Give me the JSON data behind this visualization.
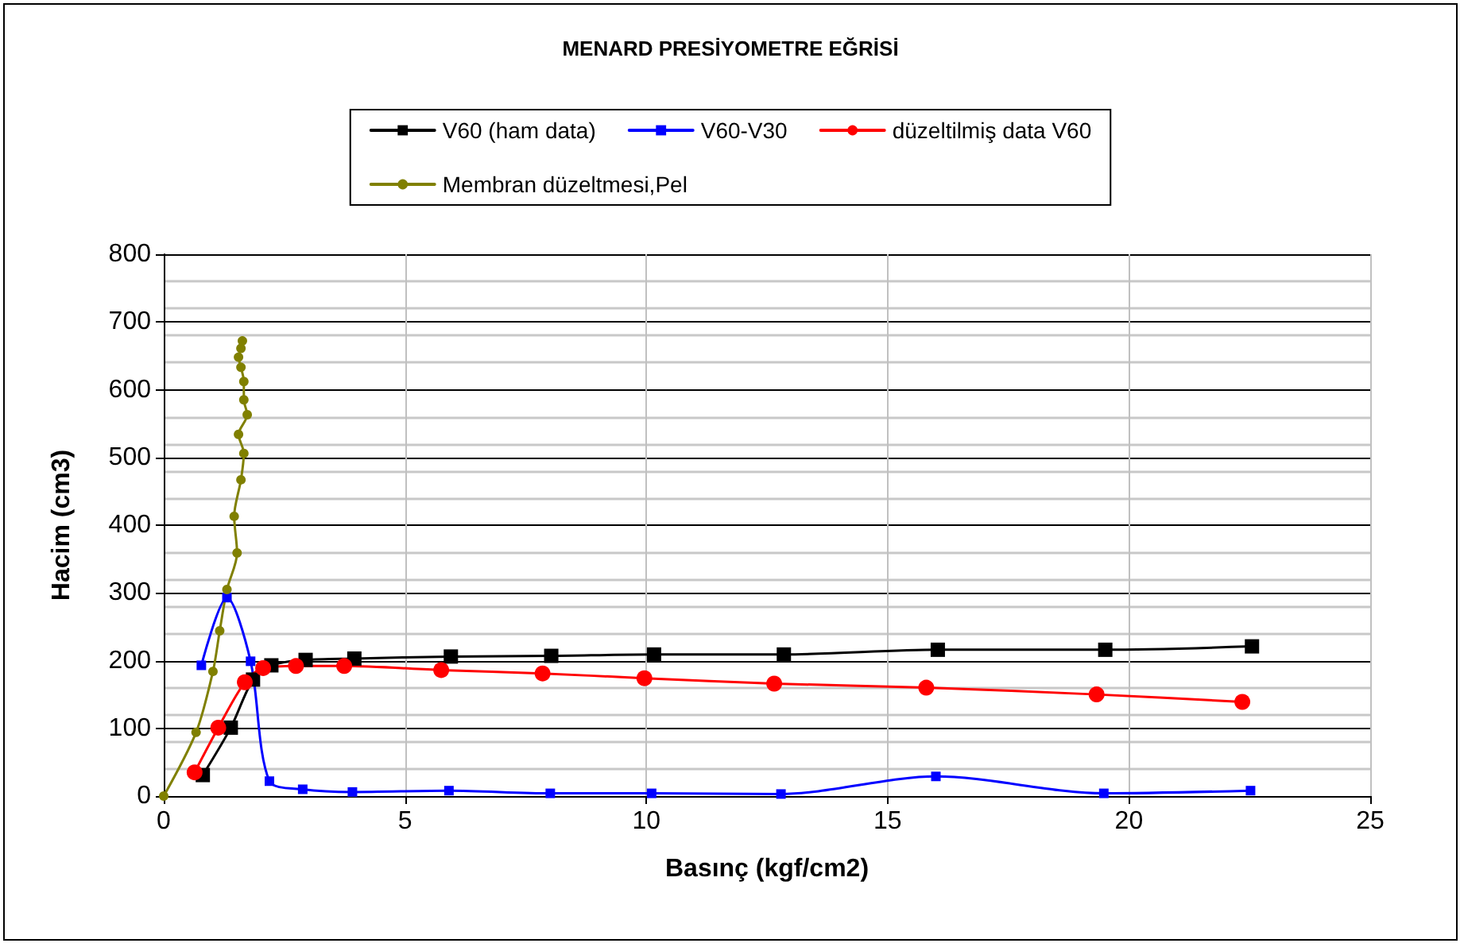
{
  "chart_data": {
    "type": "line",
    "title": "MENARD PRESİYOMETRE EĞRİSİ",
    "xlabel": "Basınç (kgf/cm2)",
    "ylabel": "Hacim (cm3)",
    "xlim": [
      0,
      25
    ],
    "xticks": [
      0,
      5,
      10,
      15,
      20,
      25
    ],
    "ylim": [
      0,
      800
    ],
    "yticks": [
      0,
      100,
      200,
      300,
      400,
      500,
      600,
      700,
      800
    ],
    "grid": true,
    "legend": "top",
    "line_style": "solid",
    "series": [
      {
        "name": "V60 (ham data)",
        "color": "#000000",
        "marker": "square",
        "x": [
          0.81,
          1.39,
          1.85,
          2.23,
          2.94,
          3.95,
          5.95,
          8.03,
          10.16,
          12.85,
          16.04,
          19.51,
          22.55
        ],
        "values": [
          31,
          101,
          172,
          193,
          201,
          203,
          206,
          207,
          209,
          209,
          216,
          216,
          221
        ]
      },
      {
        "name": "V60-V30",
        "color": "#0000ff",
        "marker": "square",
        "x": [
          0.78,
          1.31,
          1.8,
          2.19,
          2.88,
          3.91,
          5.91,
          8.01,
          10.11,
          12.79,
          16.0,
          19.48,
          22.52
        ],
        "values": [
          193,
          293,
          199,
          22,
          10,
          6,
          8,
          4,
          4,
          3,
          29,
          4,
          8
        ]
      },
      {
        "name": "düzeltilmiş data V60",
        "color": "#ff0000",
        "marker": "circle",
        "x": [
          0.64,
          1.13,
          1.68,
          2.06,
          2.74,
          3.74,
          5.75,
          7.85,
          9.96,
          12.65,
          15.8,
          19.33,
          22.35
        ],
        "values": [
          35,
          101,
          168,
          189,
          192,
          192,
          186,
          181,
          174,
          166,
          160,
          150,
          139
        ]
      },
      {
        "name": "Membran düzeltmesi,Pel",
        "color": "#808000",
        "marker": "circle",
        "x": [
          0,
          0.67,
          1.02,
          1.16,
          1.31,
          1.52,
          1.46,
          1.6,
          1.66,
          1.55,
          1.73,
          1.66,
          1.66,
          1.6,
          1.55,
          1.6,
          1.63
        ],
        "values": [
          0,
          94,
          184,
          244,
          305,
          359,
          413,
          467,
          506,
          534,
          563,
          585,
          612,
          633,
          648,
          661,
          672
        ]
      }
    ]
  }
}
